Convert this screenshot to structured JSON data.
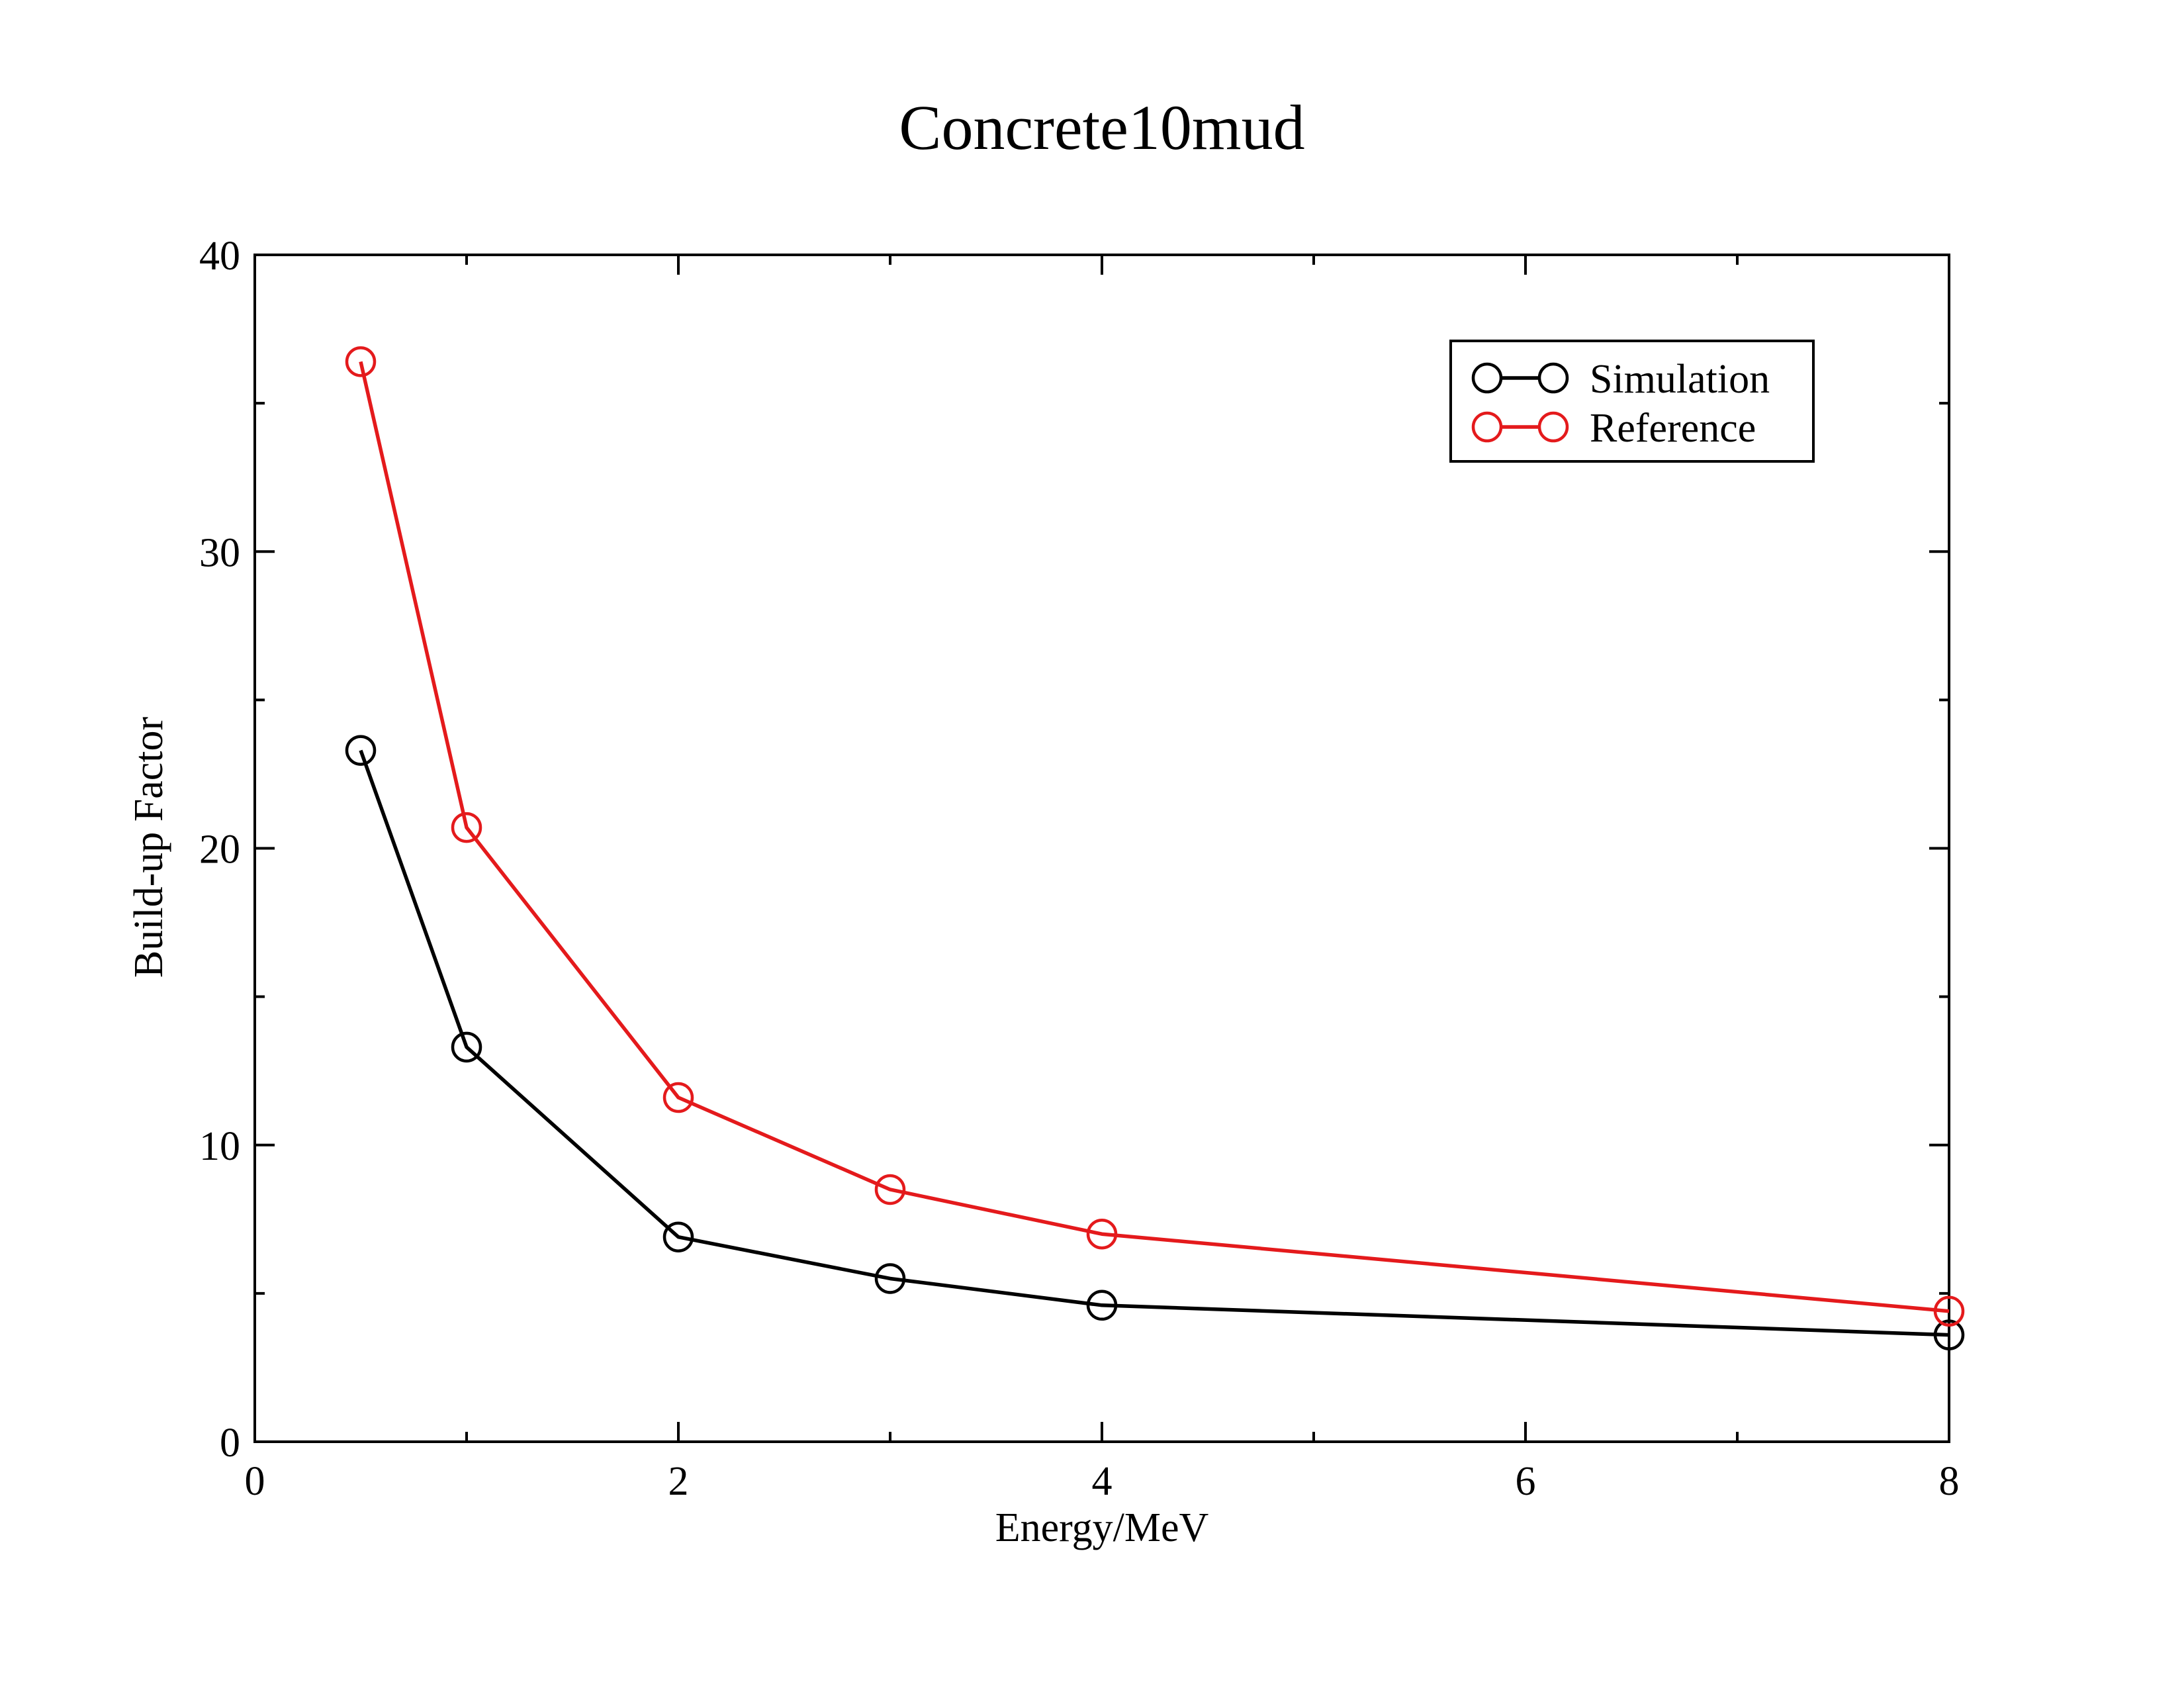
{
  "chart_data": {
    "type": "line",
    "title": "Concrete10mud",
    "xlabel": "Energy/MeV",
    "ylabel": "Build-up Factor",
    "xlim": [
      0,
      8
    ],
    "ylim": [
      0,
      40
    ],
    "xticks": [
      0,
      2,
      4,
      6,
      8
    ],
    "xminor": [
      1,
      3,
      5,
      7
    ],
    "yticks": [
      0,
      10,
      20,
      30,
      40
    ],
    "yminor": [
      5,
      15,
      25,
      35
    ],
    "grid": false,
    "legend_position": "top-right",
    "series": [
      {
        "name": "Simulation",
        "color": "#000000",
        "marker": "circle-open",
        "x": [
          0.5,
          1,
          2,
          3,
          4,
          8
        ],
        "y": [
          23.3,
          13.3,
          6.9,
          5.5,
          4.6,
          3.6
        ]
      },
      {
        "name": "Reference",
        "color": "#e41a1c",
        "marker": "circle-open",
        "x": [
          0.5,
          1,
          2,
          3,
          4,
          8
        ],
        "y": [
          36.4,
          20.7,
          11.6,
          8.5,
          7.0,
          4.4
        ]
      }
    ]
  }
}
